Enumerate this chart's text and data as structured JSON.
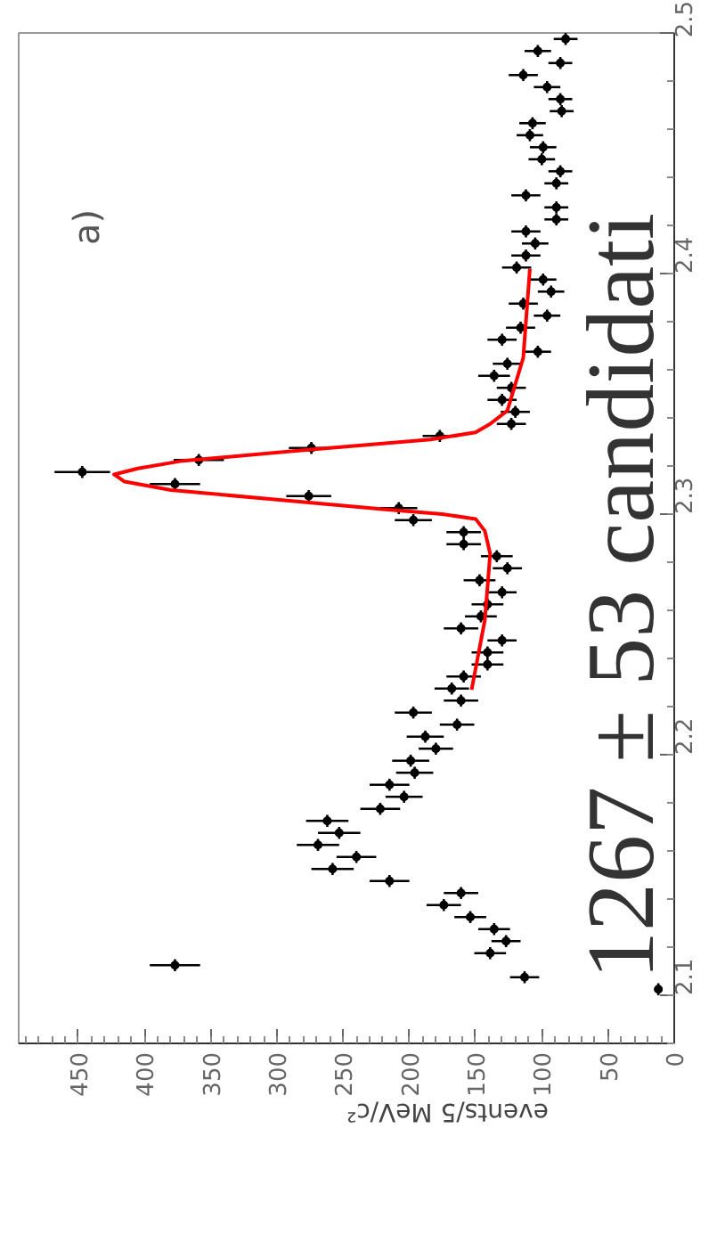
{
  "chart_data": {
    "type": "scatter",
    "xlabel": "events/5 MeV/c²",
    "annotations": [
      "a)",
      "1267 ± 53 candidati"
    ],
    "ylim": [
      2.08,
      2.5
    ],
    "yticks": [
      2.1,
      2.2,
      2.3,
      2.4,
      2.5
    ],
    "xlim": [
      495,
      0
    ],
    "xticks": [
      0,
      50,
      100,
      150,
      200,
      250,
      300,
      350,
      400,
      450
    ],
    "grid": false,
    "marker": "circle",
    "series": [
      {
        "color": "#000000",
        "values": [
          2.1025,
          2.1075,
          2.1125,
          2.1175,
          2.1225,
          2.1275,
          2.1325,
          2.1375,
          2.1425,
          2.1475,
          2.1525,
          2.1575,
          2.1625,
          2.1675,
          2.1725,
          2.1775,
          2.1825,
          2.1875,
          2.1925,
          2.1975,
          2.2025,
          2.2075,
          2.2125,
          2.2175,
          2.2225,
          2.2275,
          2.2325,
          2.2375,
          2.2425,
          2.2475,
          2.2525,
          2.2575,
          2.2625,
          2.2675,
          2.2725,
          2.2775,
          2.2825,
          2.2875,
          2.2925,
          2.2975,
          2.3025,
          2.3075,
          2.3125,
          2.3175,
          2.3225,
          2.3275,
          2.3325,
          2.3375,
          2.3425,
          2.3475,
          2.3525,
          2.3575,
          2.3625,
          2.3675,
          2.3725,
          2.3775,
          2.3825,
          2.3875,
          2.3925,
          2.3975,
          2.4025,
          2.4075,
          2.4125,
          2.4175,
          2.4225,
          2.4275,
          2.4325,
          2.4375,
          2.4425,
          2.4475,
          2.4525,
          2.4575,
          2.4625,
          2.4675,
          2.4725,
          2.4775,
          2.4825,
          2.4875,
          2.4925,
          2.4975
        ],
        "x": [
          12,
          113,
          377,
          139,
          127,
          136,
          154,
          174,
          161,
          215,
          258,
          240,
          269,
          253,
          262,
          222,
          204,
          215,
          196,
          199,
          180,
          188,
          164,
          197,
          161,
          168,
          159,
          141,
          141,
          130,
          161,
          146,
          141,
          130,
          147,
          126,
          134,
          159,
          159,
          197,
          208,
          276,
          377,
          447,
          359,
          274,
          177,
          123,
          120,
          130,
          123,
          136,
          126,
          103,
          130,
          116,
          96,
          114,
          93,
          99,
          119,
          112,
          105,
          112,
          89,
          89,
          112,
          89,
          86,
          100,
          99,
          109,
          107,
          85,
          86,
          96,
          114,
          86,
          103,
          82
        ],
        "xerrors": [
          3,
          11,
          19,
          12,
          11,
          12,
          12,
          13,
          13,
          15,
          16,
          15,
          16,
          16,
          16,
          15,
          14,
          15,
          14,
          14,
          13,
          14,
          13,
          14,
          13,
          13,
          13,
          12,
          12,
          11,
          13,
          12,
          12,
          11,
          12,
          11,
          12,
          13,
          13,
          14,
          14,
          17,
          19,
          21,
          19,
          17,
          13,
          11,
          11,
          11,
          11,
          12,
          11,
          10,
          11,
          11,
          10,
          11,
          10,
          10,
          11,
          11,
          10,
          11,
          9,
          9,
          11,
          9,
          9,
          10,
          10,
          10,
          10,
          9,
          9,
          10,
          11,
          9,
          10,
          9
        ],
        "errors": [
          0.0025,
          0.0025,
          0.0025,
          0.0025,
          0.0025,
          0.0025,
          0.0025,
          0.0025,
          0.0025,
          0.0025,
          0.0025,
          0.0025,
          0.0025,
          0.0025,
          0.0025,
          0.0025,
          0.0025,
          0.0025,
          0.0025,
          0.0025,
          0.0025,
          0.0025,
          0.0025,
          0.0025,
          0.0025,
          0.0025,
          0.0025,
          0.0025,
          0.0025,
          0.0025,
          0.0025,
          0.0025,
          0.0025,
          0.0025,
          0.0025,
          0.0025,
          0.0025,
          0.0025,
          0.0025,
          0.0025,
          0.0025,
          0.0025,
          0.0025,
          0.0025,
          0.0025,
          0.0025,
          0.0025,
          0.0025,
          0.0025,
          0.0025,
          0.0025,
          0.0025,
          0.0025,
          0.0025,
          0.0025,
          0.0025,
          0.0025,
          0.0025,
          0.0025,
          0.0025,
          0.0025,
          0.0025,
          0.0025,
          0.0025,
          0.0025,
          0.0025,
          0.0025,
          0.0025,
          0.0025,
          0.0025,
          0.0025,
          0.0025,
          0.0025,
          0.0025,
          0.0025,
          0.0025,
          0.0025,
          0.0025,
          0.0025,
          0.0025
        ]
      },
      {
        "type": "line",
        "color": "#ff0000",
        "marker": "none",
        "x": [
          153,
          143,
          139,
          143,
          150,
          175,
          220,
          300,
          380,
          415,
          423,
          405,
          373,
          282,
          184,
          150,
          139,
          126,
          114,
          109
        ],
        "values": [
          2.227,
          2.256,
          2.2835,
          2.293,
          2.298,
          2.3,
          2.302,
          2.306,
          2.31,
          2.3135,
          2.3165,
          2.319,
          2.322,
          2.3265,
          2.331,
          2.334,
          2.3375,
          2.343,
          2.365,
          2.402
        ]
      }
    ]
  }
}
